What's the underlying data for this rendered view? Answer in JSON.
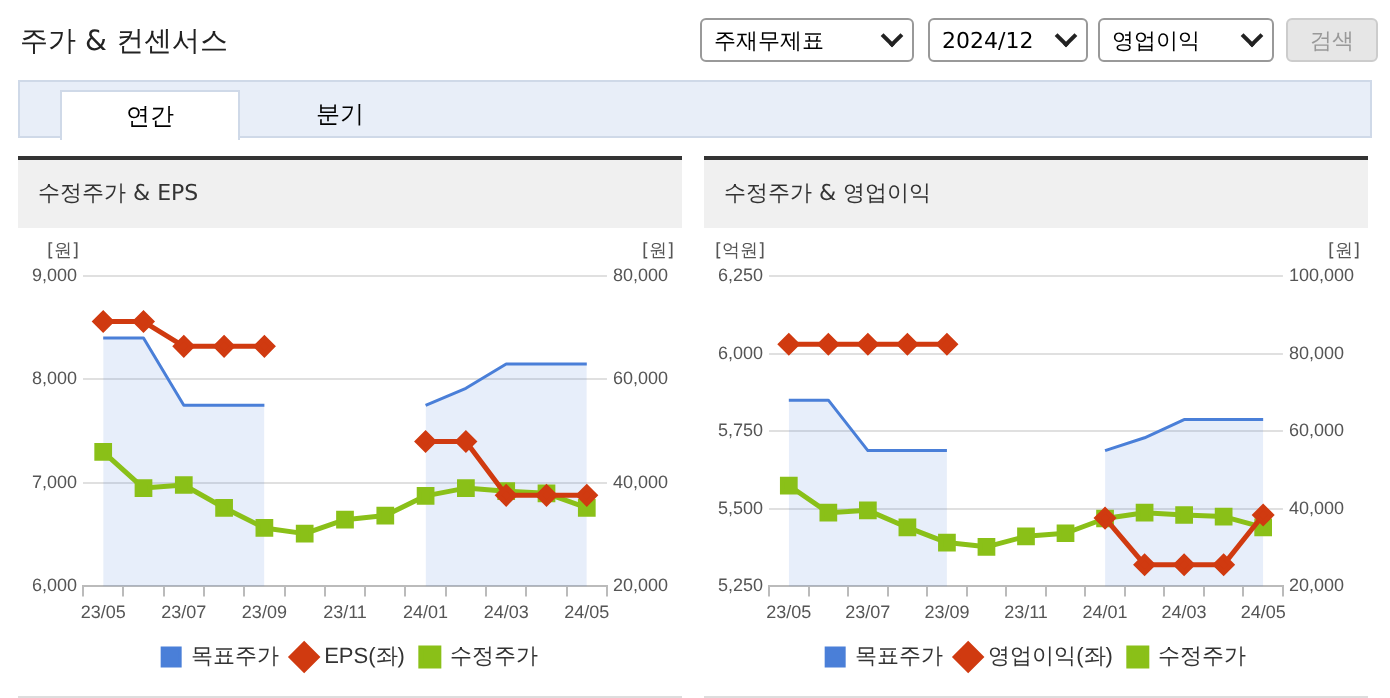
{
  "chart_data": [
    {
      "type": "other",
      "title": "주가 & 컨센서스",
      "annotations": [
        "주재무제표",
        "2024/12",
        "영업이익",
        "검색",
        "연간",
        "분기"
      ]
    },
    {
      "type": "line",
      "title": "수정주가 & EPS",
      "ylabel": "[원]",
      "y2label": "[원]",
      "categories": [
        "23/05",
        null,
        "23/07",
        null,
        "23/09",
        null,
        "23/11",
        null,
        "24/01",
        null,
        "24/03",
        null,
        "24/05"
      ],
      "series": [
        {
          "name": "목표주가",
          "type": "area",
          "axis": "y2",
          "marker": "none",
          "color": "#4a7fd8",
          "values": [
            68000,
            68000,
            55000,
            55000,
            55000,
            null,
            null,
            null,
            55000,
            58300,
            63000,
            63000,
            63000
          ]
        },
        {
          "name": "EPS(좌)",
          "type": "line",
          "marker": "diamond",
          "color": "#d03a10",
          "values": [
            8560,
            8560,
            8320,
            8320,
            8320,
            null,
            null,
            null,
            7400,
            7400,
            6880,
            6880,
            6880
          ]
        },
        {
          "name": "수정주가",
          "type": "line",
          "axis": "y2",
          "marker": "square",
          "color": "#8ac018",
          "values": [
            46000,
            39000,
            39600,
            35200,
            31300,
            30200,
            32900,
            33700,
            37500,
            39000,
            38400,
            38000,
            35200
          ]
        }
      ],
      "ylim": [
        6000,
        9000
      ],
      "yticks": [
        {
          "value": 6000,
          "label": "6,000"
        },
        {
          "value": 7000,
          "label": "7,000"
        },
        {
          "value": 8000,
          "label": "8,000"
        },
        {
          "value": 9000,
          "label": "9,000"
        }
      ],
      "y2lim": [
        20000,
        80000
      ],
      "y2ticks": [
        {
          "value": 20000,
          "label": "20,000"
        },
        {
          "value": 40000,
          "label": "40,000"
        },
        {
          "value": 60000,
          "label": "60,000"
        },
        {
          "value": 80000,
          "label": "80,000"
        }
      ],
      "grid": "y",
      "legend": "bottom"
    },
    {
      "type": "line",
      "title": "수정주가 & 영업이익",
      "ylabel": "[억원]",
      "y2label": "[원]",
      "categories": [
        "23/05",
        null,
        "23/07",
        null,
        "23/09",
        null,
        "23/11",
        null,
        "24/01",
        null,
        "24/03",
        null,
        "24/05"
      ],
      "series": [
        {
          "name": "목표주가",
          "type": "area",
          "axis": "y2",
          "marker": "none",
          "color": "#4a7fd8",
          "values": [
            68000,
            68000,
            55000,
            55000,
            55000,
            null,
            null,
            null,
            55000,
            58300,
            63000,
            63000,
            63000
          ]
        },
        {
          "name": "영업이익(좌)",
          "type": "line",
          "marker": "diamond",
          "color": "#d03a10",
          "values": [
            6030,
            6030,
            6030,
            6030,
            6030,
            null,
            null,
            null,
            5470,
            5320,
            5320,
            5320,
            5480
          ]
        },
        {
          "name": "수정주가",
          "type": "line",
          "axis": "y2",
          "marker": "square",
          "color": "#8ac018",
          "values": [
            46000,
            39000,
            39600,
            35200,
            31300,
            30200,
            32900,
            33700,
            37500,
            39000,
            38400,
            38000,
            35200
          ]
        }
      ],
      "ylim": [
        5250,
        6250
      ],
      "yticks": [
        {
          "value": 5250,
          "label": "5,250"
        },
        {
          "value": 5500,
          "label": "5,500"
        },
        {
          "value": 5750,
          "label": "5,750"
        },
        {
          "value": 6000,
          "label": "6,000"
        },
        {
          "value": 6250,
          "label": "6,250"
        }
      ],
      "y2lim": [
        20000,
        100000
      ],
      "y2ticks": [
        {
          "value": 20000,
          "label": "20,000"
        },
        {
          "value": 40000,
          "label": "40,000"
        },
        {
          "value": 60000,
          "label": "60,000"
        },
        {
          "value": 80000,
          "label": "80,000"
        },
        {
          "value": 100000,
          "label": "100,000"
        }
      ],
      "grid": "y",
      "legend": "bottom"
    }
  ]
}
